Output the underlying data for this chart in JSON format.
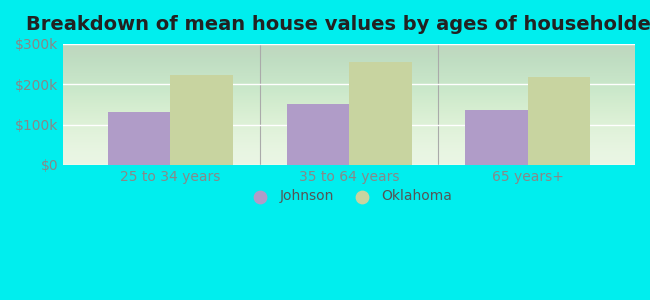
{
  "title": "Breakdown of mean house values by ages of householders",
  "categories": [
    "25 to 34 years",
    "35 to 64 years",
    "65 years+"
  ],
  "johnson_values": [
    130000,
    150000,
    135000
  ],
  "oklahoma_values": [
    222000,
    255000,
    218000
  ],
  "johnson_color": "#b09cc8",
  "oklahoma_color": "#c8d4a0",
  "ylim": [
    0,
    300000
  ],
  "yticks": [
    0,
    100000,
    200000,
    300000
  ],
  "ytick_labels": [
    "$0",
    "$100k",
    "$200k",
    "$300k"
  ],
  "legend_labels": [
    "Johnson",
    "Oklahoma"
  ],
  "background_color": "#00eeee",
  "plot_bg_gradient_top": "#e8f5e8",
  "plot_bg_gradient_bottom": "#f5fff5",
  "bar_width": 0.35,
  "title_fontsize": 14,
  "tick_fontsize": 10,
  "legend_fontsize": 10
}
